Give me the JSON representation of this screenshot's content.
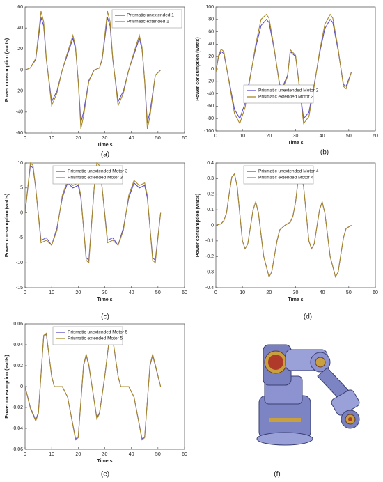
{
  "chart_data": [
    {
      "type": "line",
      "caption": "(a)",
      "xlabel": "Time s",
      "ylabel": "Power consumption (watts)",
      "legend": "upper right",
      "xlim": [
        0,
        60
      ],
      "xticks": [
        0,
        10,
        20,
        30,
        40,
        50,
        60
      ],
      "ylim": [
        -60,
        60
      ],
      "yticks": [
        -60,
        -40,
        -20,
        0,
        20,
        40,
        60
      ],
      "x": [
        0,
        2,
        4,
        5,
        6,
        7,
        8,
        10,
        12,
        14,
        16,
        18,
        19,
        20,
        21,
        22,
        24,
        26,
        28,
        29,
        30,
        31,
        32,
        33,
        35,
        37,
        39,
        41,
        43,
        44,
        45,
        46,
        47,
        49,
        51
      ],
      "series": [
        {
          "name": "Prismatic unextended 1",
          "color": "#5b4fc8",
          "values": [
            0,
            2,
            10,
            30,
            50,
            42,
            10,
            -30,
            -20,
            0,
            15,
            30,
            20,
            -10,
            -50,
            -40,
            -10,
            0,
            2,
            10,
            30,
            50,
            42,
            10,
            -30,
            -20,
            0,
            15,
            30,
            20,
            -10,
            -50,
            -40,
            -5,
            0
          ]
        },
        {
          "name": "Prismatic extended 1",
          "color": "#a8882a",
          "values": [
            0,
            2,
            11,
            33,
            56,
            46,
            11,
            -34,
            -22,
            0,
            17,
            33,
            22,
            -11,
            -56,
            -44,
            -11,
            0,
            2,
            11,
            33,
            56,
            46,
            11,
            -34,
            -22,
            0,
            17,
            33,
            22,
            -11,
            -56,
            -44,
            -5,
            0
          ]
        }
      ]
    },
    {
      "type": "line",
      "caption": "(b)",
      "xlabel": "Time s",
      "ylabel": "Power consumption (watts)",
      "legend": "lower left",
      "xlim": [
        0,
        60
      ],
      "xticks": [
        0,
        10,
        20,
        30,
        40,
        50,
        60
      ],
      "ylim": [
        -100,
        100
      ],
      "yticks": [
        -100,
        -80,
        -60,
        -40,
        -20,
        0,
        20,
        40,
        60,
        80,
        100
      ],
      "x": [
        0,
        1,
        2,
        3,
        5,
        7,
        9,
        11,
        13,
        15,
        17,
        19,
        20,
        22,
        24,
        25,
        27,
        28,
        30,
        33,
        35,
        37,
        39,
        41,
        43,
        44,
        46,
        48,
        49,
        51
      ],
      "series": [
        {
          "name": "Prismatic unextended Motor 2",
          "color": "#5b4fc8",
          "values": [
            -5,
            20,
            28,
            25,
            -20,
            -65,
            -80,
            -55,
            -10,
            35,
            70,
            80,
            75,
            30,
            -25,
            -30,
            -10,
            28,
            20,
            -80,
            -70,
            -25,
            25,
            65,
            80,
            75,
            30,
            -25,
            -28,
            -5
          ]
        },
        {
          "name": "Prismatic extended Motor 2",
          "color": "#a8882a",
          "values": [
            -5,
            22,
            32,
            28,
            -22,
            -72,
            -88,
            -62,
            -12,
            40,
            80,
            88,
            82,
            32,
            -28,
            -33,
            -12,
            31,
            22,
            -88,
            -77,
            -28,
            28,
            72,
            88,
            82,
            33,
            -28,
            -32,
            -5
          ]
        }
      ]
    },
    {
      "type": "line",
      "caption": "(c)",
      "xlabel": "Time s",
      "ylabel": "Power consumption (watts)",
      "legend": "upper left",
      "xlim": [
        0,
        60
      ],
      "xticks": [
        0,
        10,
        20,
        30,
        40,
        50,
        60
      ],
      "ylim": [
        -15,
        10
      ],
      "yticks": [
        -15,
        -10,
        -5,
        0,
        5,
        10
      ],
      "x": [
        0,
        2,
        3,
        4,
        6,
        8,
        10,
        12,
        14,
        16,
        18,
        20,
        21,
        23,
        24,
        26,
        27,
        28,
        29,
        31,
        33,
        35,
        37,
        39,
        41,
        43,
        45,
        46,
        48,
        49,
        51
      ],
      "series": [
        {
          "name": "Prismatic unextended Motor 3",
          "color": "#5b4fc8",
          "values": [
            0,
            9.5,
            9,
            5,
            -5.5,
            -5,
            -6.5,
            -3,
            3,
            6,
            5,
            5.5,
            3,
            -9,
            -9.5,
            5,
            9.5,
            9,
            5,
            -5.5,
            -5,
            -6.5,
            -3,
            3,
            6,
            5,
            5.5,
            3,
            -9,
            -9.5,
            0
          ]
        },
        {
          "name": "Prismatic extended Motor 3",
          "color": "#a8882a",
          "values": [
            0,
            10,
            9.5,
            5,
            -6,
            -5.5,
            -6.5,
            -3.5,
            3.5,
            6.5,
            5.5,
            6,
            3.5,
            -9.5,
            -10,
            5,
            10,
            9.5,
            5,
            -6,
            -5.5,
            -6.5,
            -3.5,
            3.5,
            6.5,
            5.5,
            6,
            3.5,
            -9.5,
            -10,
            0
          ]
        }
      ]
    },
    {
      "type": "line",
      "caption": "(d)",
      "xlabel": "Time s",
      "ylabel": "Power consumption (watts)",
      "legend": "upper left",
      "xlim": [
        0,
        60
      ],
      "xticks": [
        0,
        10,
        20,
        30,
        40,
        50,
        60
      ],
      "ylim": [
        -0.4,
        0.4
      ],
      "yticks": [
        -0.4,
        -0.3,
        -0.2,
        -0.1,
        0,
        0.1,
        0.2,
        0.3,
        0.4
      ],
      "x": [
        0,
        2,
        3,
        4,
        5,
        6,
        7,
        8,
        10,
        11,
        12,
        14,
        15,
        16,
        18,
        20,
        21,
        23,
        24,
        26,
        28,
        29,
        30,
        31,
        32,
        33,
        35,
        36,
        37,
        39,
        40,
        41,
        43,
        45,
        46,
        48,
        49,
        51
      ],
      "series": [
        {
          "name": "Prismatic unextended Motor 4",
          "color": "#5b4fc8",
          "values": [
            0,
            0.01,
            0.03,
            0.08,
            0.2,
            0.31,
            0.33,
            0.25,
            -0.1,
            -0.15,
            -0.12,
            0.1,
            0.15,
            0.08,
            -0.2,
            -0.33,
            -0.3,
            -0.1,
            -0.03,
            0,
            0.02,
            0.06,
            0.15,
            0.3,
            0.33,
            0.25,
            -0.1,
            -0.15,
            -0.12,
            0.1,
            0.15,
            0.08,
            -0.2,
            -0.33,
            -0.3,
            -0.08,
            -0.02,
            0
          ]
        },
        {
          "name": "Prismatic extended Motor 4",
          "color": "#a8882a",
          "values": [
            0,
            0.01,
            0.03,
            0.08,
            0.2,
            0.31,
            0.33,
            0.25,
            -0.1,
            -0.15,
            -0.12,
            0.1,
            0.15,
            0.08,
            -0.2,
            -0.33,
            -0.3,
            -0.1,
            -0.03,
            0,
            0.02,
            0.06,
            0.15,
            0.3,
            0.33,
            0.25,
            -0.1,
            -0.15,
            -0.12,
            0.1,
            0.15,
            0.08,
            -0.2,
            -0.33,
            -0.3,
            -0.08,
            -0.02,
            0
          ]
        }
      ]
    },
    {
      "type": "line",
      "caption": "(e)",
      "xlabel": "Time s",
      "ylabel": "Power consumption (watts)",
      "legend": "upper left",
      "xlim": [
        0,
        60
      ],
      "xticks": [
        0,
        10,
        20,
        30,
        40,
        50,
        60
      ],
      "ylim": [
        -0.06,
        0.06
      ],
      "yticks": [
        -0.06,
        -0.04,
        -0.02,
        0,
        0.02,
        0.04,
        0.06
      ],
      "x": [
        0,
        2,
        4,
        5,
        7,
        8,
        10,
        11,
        13,
        14,
        16,
        19,
        20,
        22,
        23,
        24,
        27,
        28,
        30,
        32,
        33,
        35,
        36,
        38,
        39,
        41,
        44,
        45,
        47,
        48,
        49,
        51
      ],
      "series": [
        {
          "name": "Prismatic unextended Motor 5",
          "color": "#5b4fc8",
          "values": [
            0,
            -0.02,
            -0.032,
            -0.025,
            0.048,
            0.05,
            0.01,
            0,
            0,
            0,
            -0.01,
            -0.05,
            -0.048,
            0.02,
            0.03,
            0.02,
            -0.03,
            -0.025,
            0.01,
            0.052,
            0.045,
            0.01,
            0,
            0,
            0,
            -0.01,
            -0.05,
            -0.048,
            0.02,
            0.03,
            0.02,
            0
          ]
        },
        {
          "name": "Prismatic extended Motor 5",
          "color": "#a8882a",
          "values": [
            0,
            -0.021,
            -0.033,
            -0.026,
            0.049,
            0.051,
            0.01,
            0,
            0,
            0,
            -0.01,
            -0.051,
            -0.049,
            0.021,
            0.031,
            0.021,
            -0.031,
            -0.026,
            0.01,
            0.053,
            0.046,
            0.01,
            0,
            0,
            0,
            -0.01,
            -0.051,
            -0.049,
            0.021,
            0.031,
            0.021,
            0
          ]
        }
      ]
    }
  ],
  "image_caption": "(f)"
}
